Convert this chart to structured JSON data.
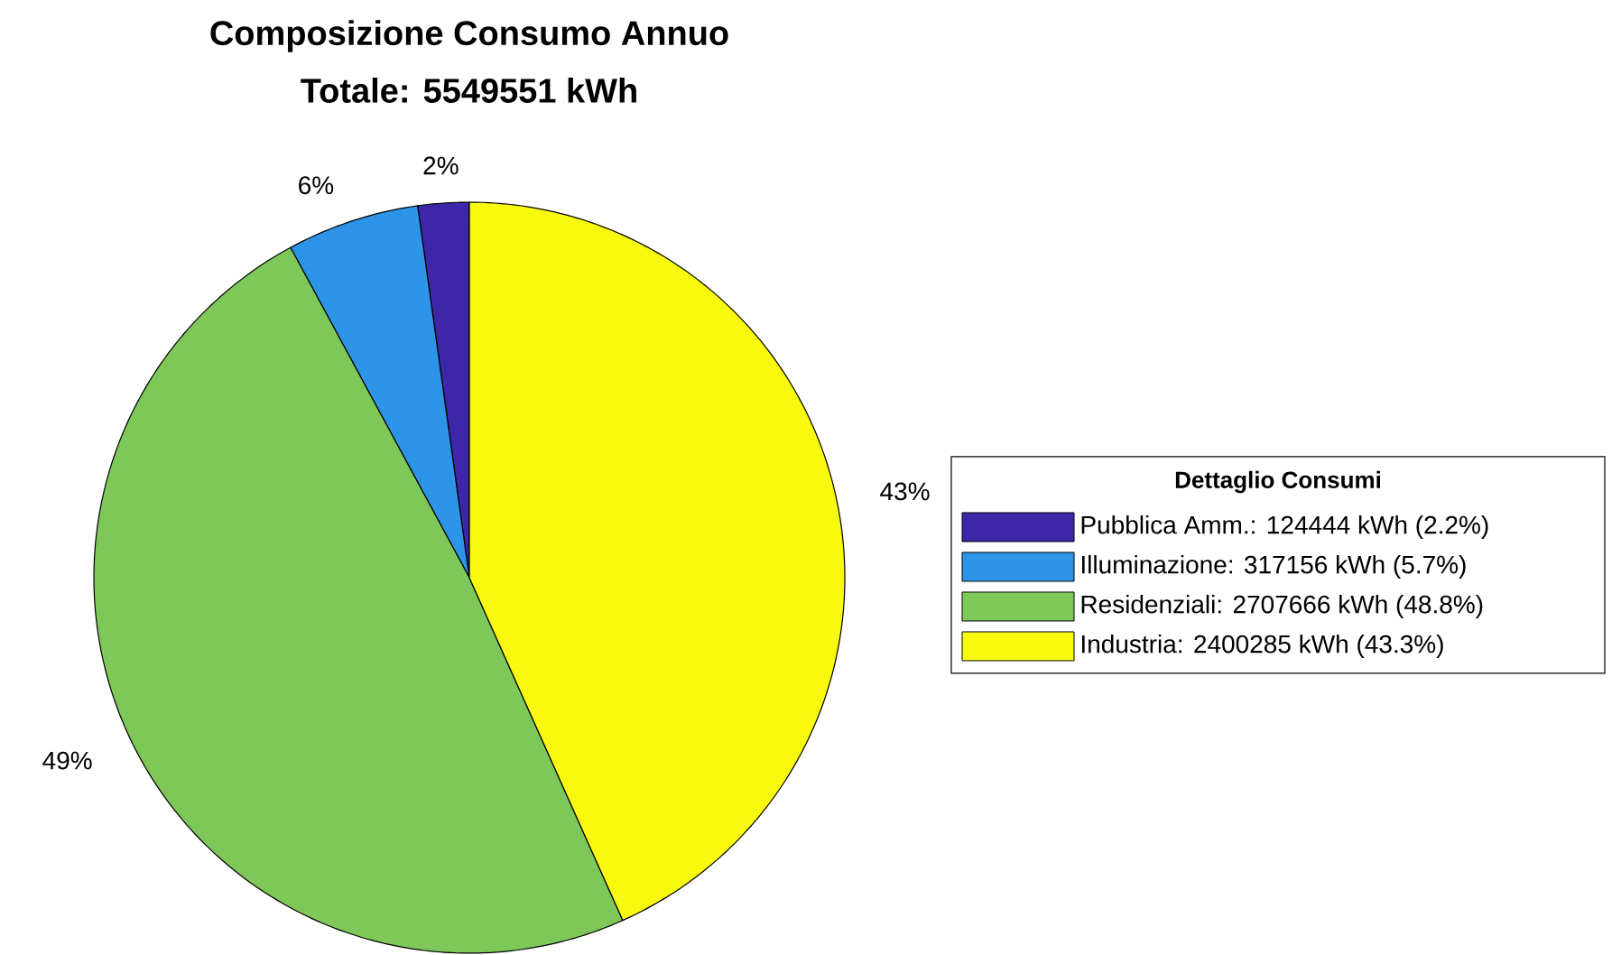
{
  "chart_data": {
    "type": "pie",
    "title": "Composizione Consumo Annuo",
    "subtitle": "Totale: 5549551 kWh",
    "legend_title": "Dettaglio Consumi",
    "legend": "right",
    "categories": [
      "Pubblica Amm.: 124444 kWh (2.2%)",
      "Illuminazione: 317156 kWh (5.7%)",
      "Residenziali: 2707666 kWh (48.8%)",
      "Industria: 2400285 kWh (43.3%)"
    ],
    "values": [
      2.2,
      5.7,
      48.8,
      43.3
    ],
    "value_labels": [
      "2%",
      "6%",
      "49%",
      "43%"
    ],
    "colors": [
      "#3e26a8",
      "#2e94e8",
      "#7ec85a",
      "#f9f90f"
    ]
  }
}
